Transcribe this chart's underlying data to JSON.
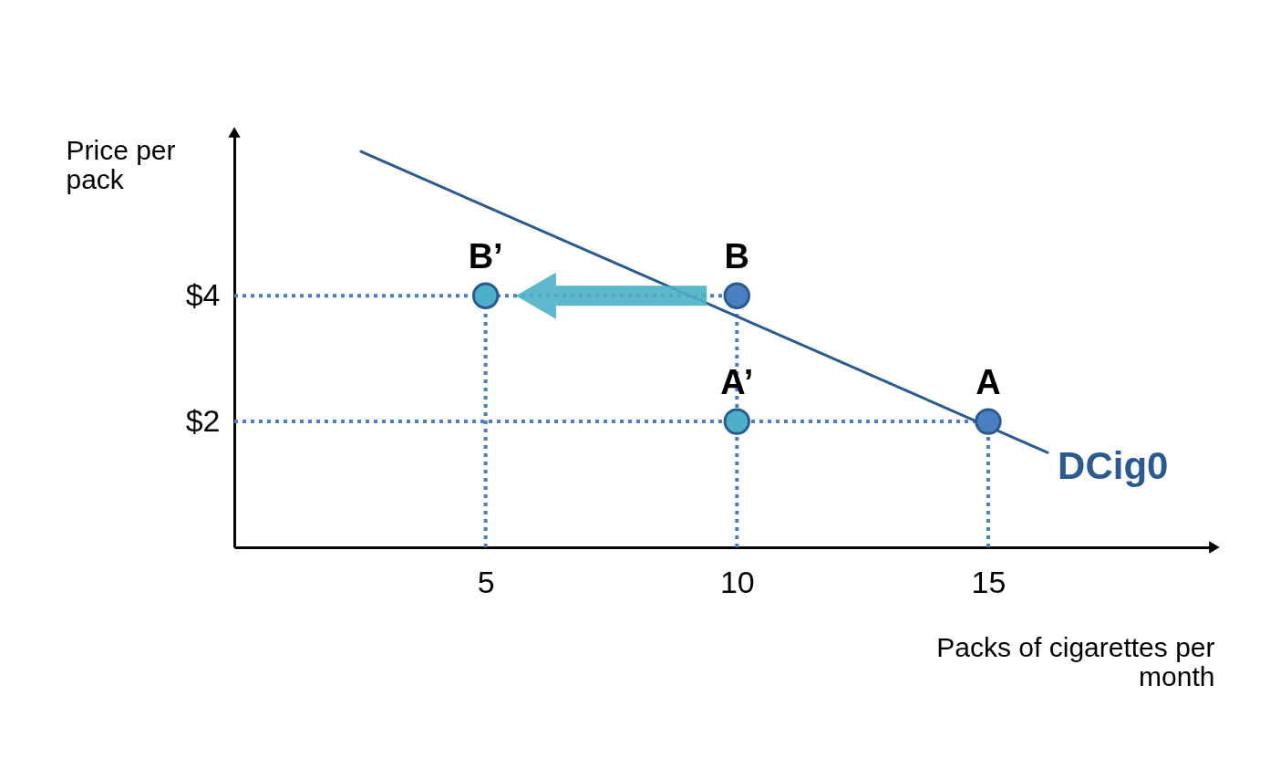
{
  "chart_data": {
    "type": "scatter",
    "xlabel": "Packs of cigarettes per month",
    "ylabel": "Price per pack",
    "xlim": [
      0,
      19.5
    ],
    "ylim": [
      0,
      6.6
    ],
    "xticks": [
      5,
      10,
      15
    ],
    "yticks": [
      {
        "value": 2,
        "label": "$2"
      },
      {
        "value": 4,
        "label": "$4"
      }
    ],
    "grid": false,
    "series": [
      {
        "type": "line",
        "name": "DCig0",
        "color": "#2b5a8e",
        "line_style": "solid",
        "x": [
          2.5,
          16.2
        ],
        "values": [
          6.3,
          1.5
        ]
      },
      {
        "type": "line",
        "color": "#4a7fc1",
        "line_style": "dotted",
        "x": [
          0,
          10
        ],
        "values": [
          4,
          4
        ]
      },
      {
        "type": "line",
        "color": "#4a7fc1",
        "line_style": "dotted",
        "x": [
          0,
          15
        ],
        "values": [
          2,
          2
        ]
      },
      {
        "type": "line",
        "color": "#4a7fc1",
        "line_style": "dotted",
        "x": [
          5,
          5
        ],
        "values": [
          0,
          4
        ]
      },
      {
        "type": "line",
        "color": "#4a7fc1",
        "line_style": "dotted",
        "x": [
          10,
          10
        ],
        "values": [
          0,
          4
        ]
      },
      {
        "type": "line",
        "color": "#4a7fc1",
        "line_style": "dotted",
        "x": [
          15,
          15
        ],
        "values": [
          0,
          2
        ]
      },
      {
        "color": "#4a7fc1",
        "marker": "circle",
        "x": [
          15,
          10
        ],
        "values": [
          2,
          4
        ]
      },
      {
        "color": "#4bb0c8",
        "marker": "circle",
        "x": [
          10,
          5
        ],
        "values": [
          2,
          4
        ]
      }
    ],
    "annotations": [
      {
        "text": "A",
        "x": 15,
        "y": 2
      },
      {
        "text": "B",
        "x": 10,
        "y": 4
      },
      {
        "text": "A’",
        "x": 10,
        "y": 2
      },
      {
        "text": "B’",
        "x": 5,
        "y": 4
      }
    ]
  }
}
